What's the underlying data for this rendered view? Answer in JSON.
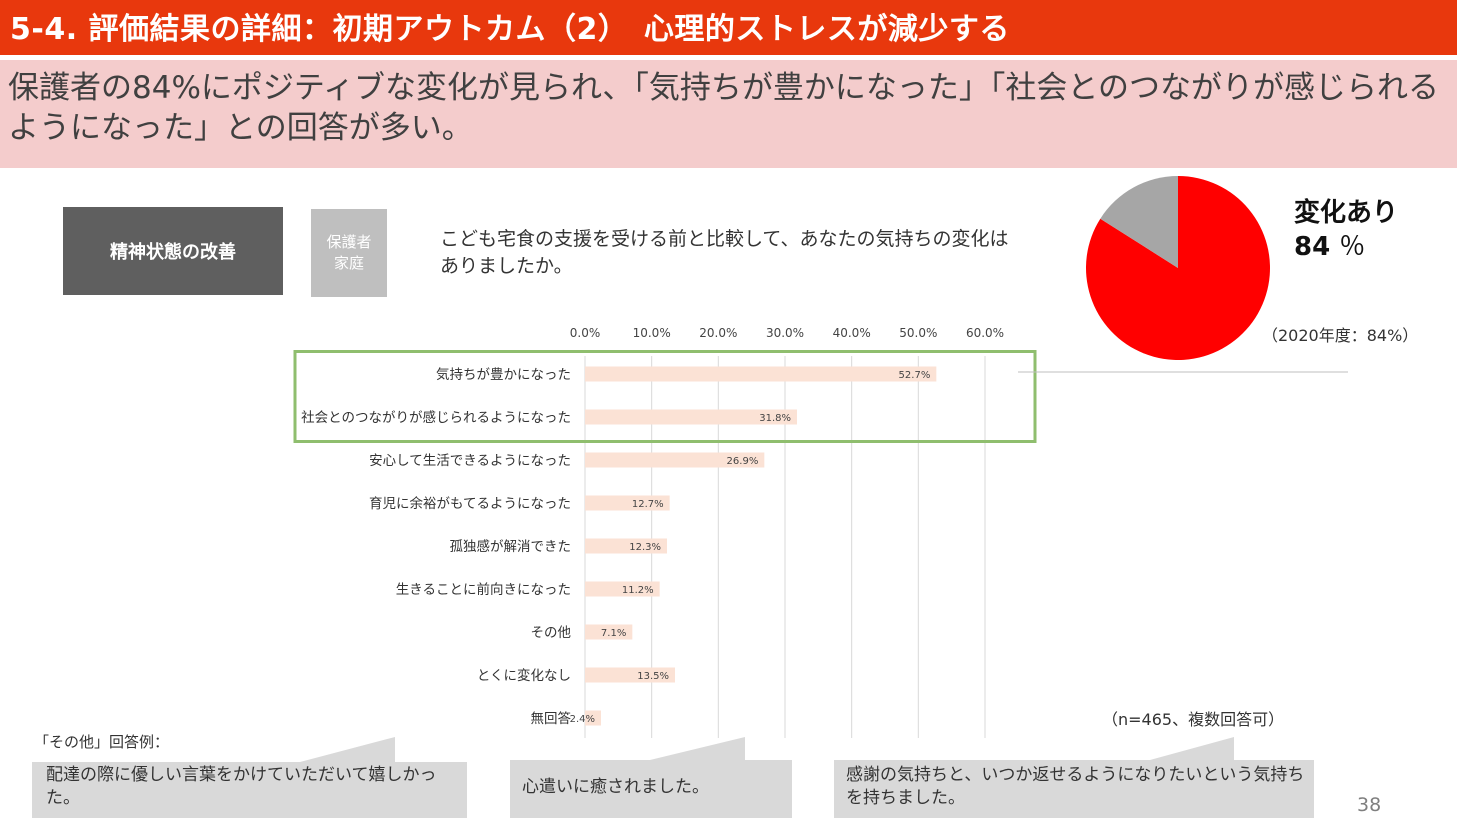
{
  "header": {
    "title": "5-4. 評価結果の詳細：初期アウトカム（2）　心理的ストレスが減少する",
    "subtitle": "保護者の84%にポジティブな変化が見られ、「気持ちが豊かになった」「社会とのつながりが感じられるようになった」との回答が多い。"
  },
  "tags": {
    "category": "精神状態の改善",
    "target_line1": "保護者",
    "target_line2": "家庭"
  },
  "question": "こども宅食の支援を受ける前と比較して、あなたの気持ちの変化はありましたか。",
  "pie": {
    "label": "変化あり",
    "value": "84",
    "unit": "％",
    "previous": "（2020年度：84%）",
    "share": 84,
    "colors": {
      "main": "#ff0000",
      "rest": "#a6a6a6"
    }
  },
  "note": "（n=465、複数回答可）",
  "other_examples": {
    "label": "「その他」回答例：",
    "items": [
      "配達の際に優しい言葉をかけていただいて嬉しかった。",
      "心遣いに癒されました。",
      "感謝の気持ちと、いつか返せるようになりたいという気持ちを持ちました。"
    ]
  },
  "page_number": "38",
  "chart_data": {
    "type": "bar",
    "orientation": "horizontal",
    "categories": [
      "気持ちが豊かになった",
      "社会とのつながりが感じられるようになった",
      "安心して生活できるようになった",
      "育児に余裕がもてるようになった",
      "孤独感が解消できた",
      "生きることに前向きになった",
      "その他",
      "とくに変化なし",
      "無回答"
    ],
    "values": [
      52.7,
      31.8,
      26.9,
      12.7,
      12.3,
      11.2,
      7.1,
      13.5,
      2.4
    ],
    "value_labels": [
      "52.7%",
      "31.8%",
      "26.9%",
      "12.7%",
      "12.3%",
      "11.2%",
      "7.1%",
      "13.5%",
      "2.4%"
    ],
    "ticks": [
      "0.0%",
      "10.0%",
      "20.0%",
      "30.0%",
      "40.0%",
      "50.0%",
      "60.0%"
    ],
    "xlim": [
      0,
      60
    ],
    "highlighted_categories": 2,
    "bar_color": "#fbe2d5",
    "highlight_color": "#8fbe6e",
    "grid": true
  }
}
